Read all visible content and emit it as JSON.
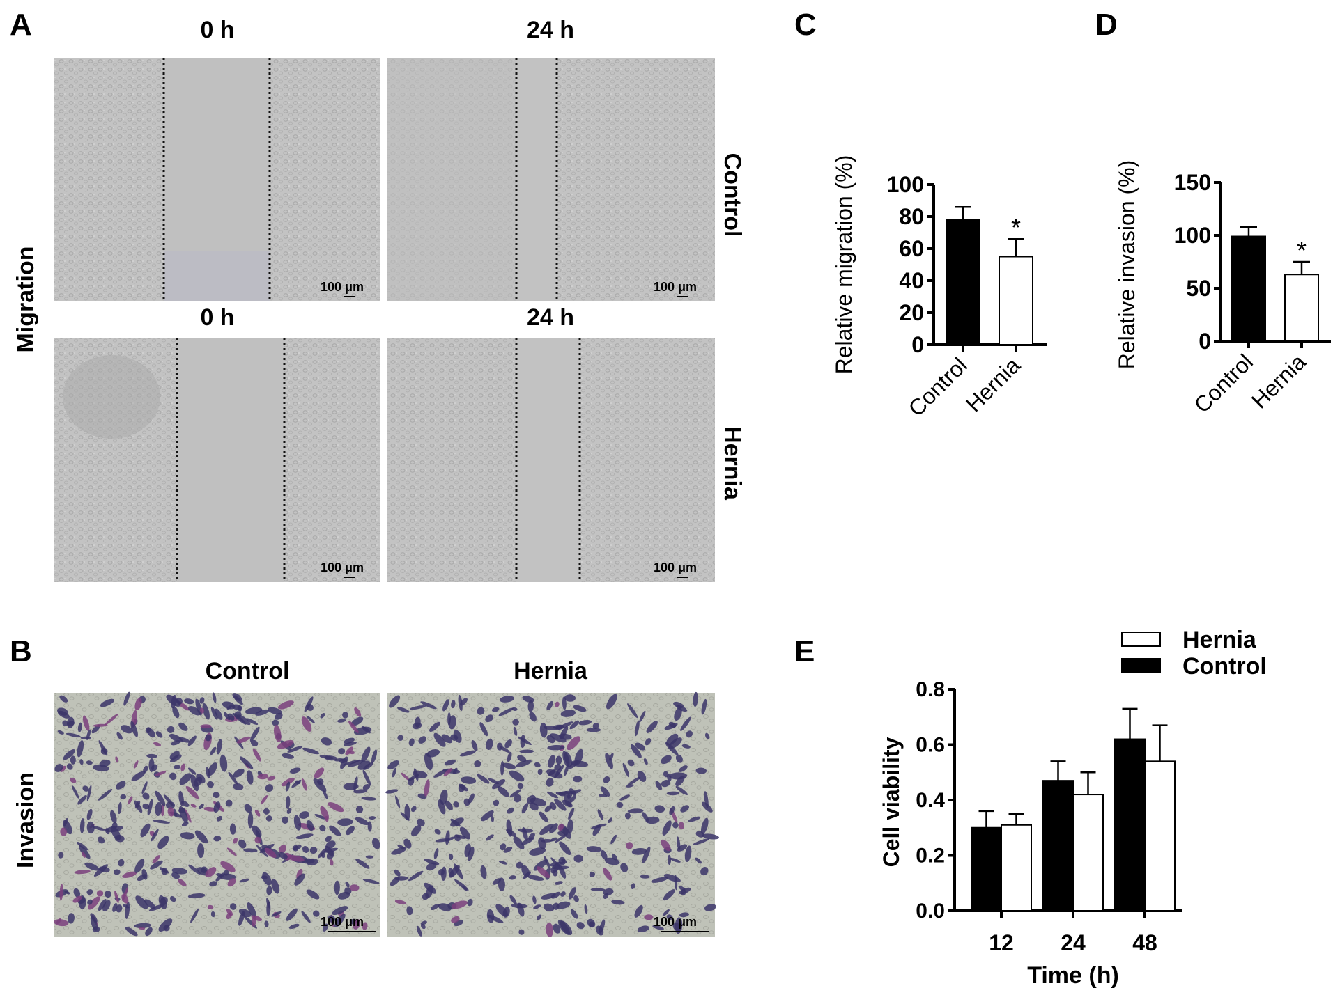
{
  "panels": {
    "a": {
      "letter": "A",
      "row_label": "Migration",
      "top_times": [
        "0 h",
        "24 h"
      ],
      "bottom_times": [
        "0 h",
        "24 h"
      ],
      "groups": [
        "Control",
        "Hernia"
      ],
      "scale_bar": "100 μm"
    },
    "b": {
      "letter": "B",
      "row_label": "Invasion",
      "columns": [
        "Control",
        "Hernia"
      ],
      "scale_bar": "100 μm"
    },
    "c": {
      "letter": "C"
    },
    "d": {
      "letter": "D"
    },
    "e": {
      "letter": "E"
    }
  },
  "chart_data": [
    {
      "panel": "C",
      "type": "bar",
      "ylabel": "Relative migration (%)",
      "categories": [
        "Control",
        "Hernia"
      ],
      "values": [
        78,
        55
      ],
      "errors": [
        8,
        11
      ],
      "fills": [
        "#000000",
        "#ffffff"
      ],
      "ylim": [
        0,
        100
      ],
      "yticks": [
        0,
        20,
        40,
        60,
        80,
        100
      ],
      "annotations": [
        "",
        "*"
      ]
    },
    {
      "panel": "D",
      "type": "bar",
      "ylabel": "Relative invasion (%)",
      "categories": [
        "Control",
        "Hernia"
      ],
      "values": [
        99,
        63
      ],
      "errors": [
        9,
        12
      ],
      "fills": [
        "#000000",
        "#ffffff"
      ],
      "ylim": [
        0,
        150
      ],
      "yticks": [
        0,
        50,
        100,
        150
      ],
      "annotations": [
        "",
        "*"
      ]
    },
    {
      "panel": "E",
      "type": "bar",
      "xlabel": "Time (h)",
      "ylabel": "Cell viability",
      "categories": [
        "12",
        "24",
        "48"
      ],
      "series": [
        {
          "name": "Control",
          "values": [
            0.3,
            0.47,
            0.62
          ],
          "errors": [
            0.06,
            0.07,
            0.11
          ],
          "color": "#000000"
        },
        {
          "name": "Hernia",
          "values": [
            0.31,
            0.42,
            0.54
          ],
          "errors": [
            0.04,
            0.08,
            0.13
          ],
          "color": "#ffffff"
        }
      ],
      "legend_order": [
        "Hernia",
        "Control"
      ],
      "ylim": [
        0,
        0.8
      ],
      "yticks": [
        "0.0",
        "0.2",
        "0.4",
        "0.6",
        "0.8"
      ],
      "legend": "top-right"
    }
  ]
}
